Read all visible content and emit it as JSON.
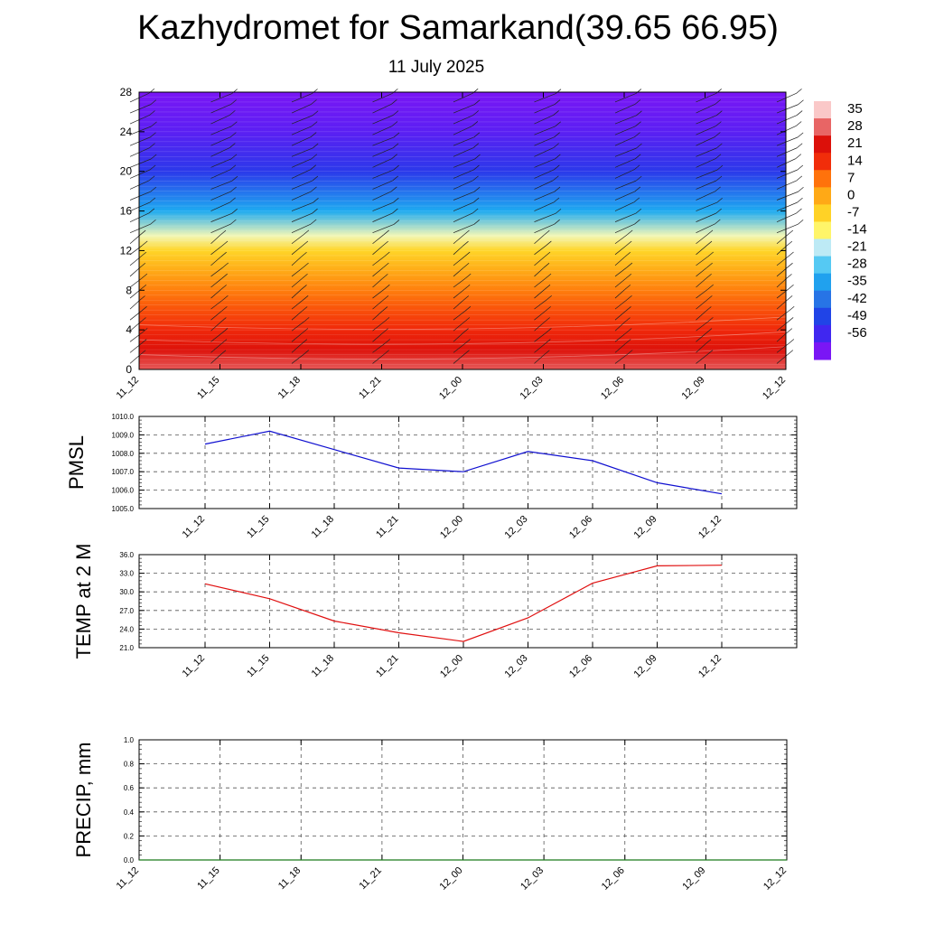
{
  "title": "Kazhydromet for Samarkand(39.65 66.95)",
  "subtitle": "11 July 2025",
  "colors": {
    "pmsl_line": "#1010d0",
    "temp_line": "#e01010",
    "precip_line": "#1a7a1a",
    "frame": "#000000",
    "grid": "#555555",
    "barb": "#222222"
  },
  "chart_data": [
    {
      "type": "heatmap",
      "title": "",
      "x_categories": [
        "11_12",
        "11_15",
        "11_18",
        "11_21",
        "12_00",
        "12_03",
        "12_06",
        "12_09",
        "12_12"
      ],
      "ylim": [
        0,
        28
      ],
      "y_ticks": [
        "0",
        "4",
        "8",
        "12",
        "16",
        "20",
        "24",
        "28"
      ],
      "colorbar_labels": [
        "35",
        "28",
        "21",
        "14",
        "7",
        "0",
        "-7",
        "-14",
        "-21",
        "-28",
        "-35",
        "-42",
        "-49",
        "-56"
      ],
      "temperature_profile": [
        {
          "y": 0,
          "t": 31
        },
        {
          "y": 2,
          "t": 24
        },
        {
          "y": 4,
          "t": 18
        },
        {
          "y": 6,
          "t": 14
        },
        {
          "y": 8,
          "t": 9
        },
        {
          "y": 10,
          "t": 3
        },
        {
          "y": 12,
          "t": -4
        },
        {
          "y": 13.5,
          "t": -14
        },
        {
          "y": 16,
          "t": -30
        },
        {
          "y": 20,
          "t": -48
        },
        {
          "y": 24,
          "t": -56
        },
        {
          "y": 28,
          "t": -60
        }
      ],
      "overlay": "wind barbs"
    },
    {
      "type": "line",
      "ylabel": "PMSL",
      "x": [
        "11_12",
        "11_15",
        "11_18",
        "11_21",
        "12_00",
        "12_03",
        "12_06",
        "12_09",
        "12_12"
      ],
      "series": [
        {
          "values": [
            1008.5,
            1009.2,
            1008.2,
            1007.2,
            1007.0,
            1008.1,
            1007.6,
            1006.4,
            1005.8
          ]
        }
      ],
      "ylim": [
        1005.0,
        1010.0
      ],
      "y_ticks": [
        "1005.0",
        "1006.0",
        "1007.0",
        "1008.0",
        "1009.0",
        "1010.0"
      ],
      "grid": true
    },
    {
      "type": "line",
      "ylabel": "TEMP at 2 M",
      "x": [
        "11_12",
        "11_15",
        "11_18",
        "11_21",
        "12_00",
        "12_03",
        "12_06",
        "12_09",
        "12_12"
      ],
      "series": [
        {
          "values": [
            31.3,
            28.9,
            25.3,
            23.4,
            22.0,
            25.8,
            31.4,
            34.2,
            34.3
          ]
        }
      ],
      "ylim": [
        21.0,
        36.0
      ],
      "y_ticks": [
        "21.0",
        "24.0",
        "27.0",
        "30.0",
        "33.0",
        "36.0"
      ],
      "grid": true
    },
    {
      "type": "line",
      "ylabel": "PRECIP, mm",
      "x": [
        "11_12",
        "11_15",
        "11_18",
        "11_21",
        "12_00",
        "12_03",
        "12_06",
        "12_09",
        "12_12"
      ],
      "series": [
        {
          "values": [
            0,
            0,
            0,
            0,
            0,
            0,
            0,
            0,
            0
          ]
        }
      ],
      "ylim": [
        0.0,
        1.0
      ],
      "y_ticks": [
        "0.0",
        "0.2",
        "0.4",
        "0.6",
        "0.8",
        "1.0"
      ],
      "grid": true
    }
  ]
}
